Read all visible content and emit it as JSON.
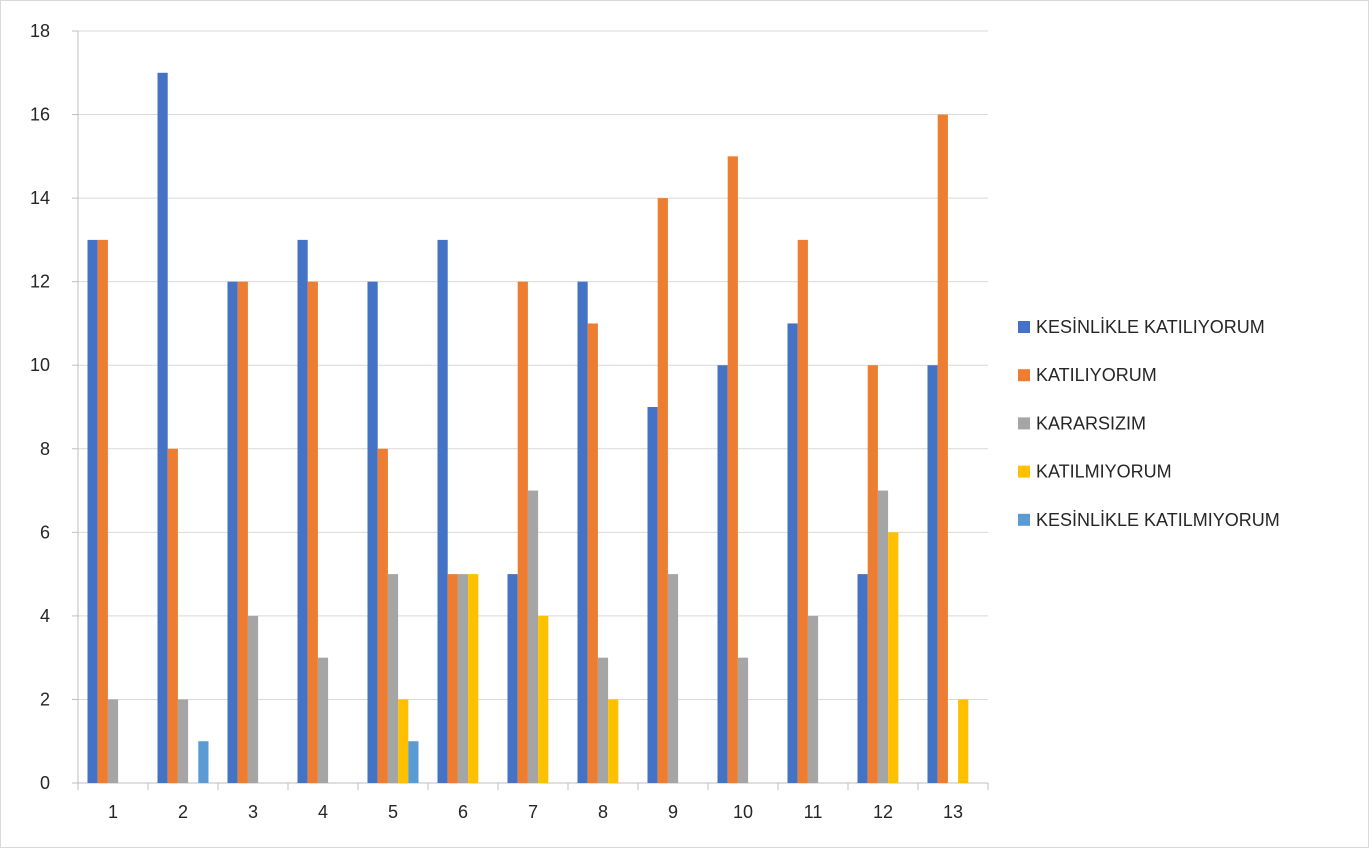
{
  "chart_data": {
    "type": "bar",
    "title": "",
    "xlabel": "",
    "ylabel": "",
    "ylim": [
      0,
      18
    ],
    "yticks": [
      0,
      2,
      4,
      6,
      8,
      10,
      12,
      14,
      16,
      18
    ],
    "grid": true,
    "legend_position": "right",
    "categories": [
      "1",
      "2",
      "3",
      "4",
      "5",
      "6",
      "7",
      "8",
      "9",
      "10",
      "11",
      "12",
      "13"
    ],
    "series": [
      {
        "name": "KESİNLİKLE KATILIYORUM",
        "color": "#4472C4",
        "values": [
          13,
          17,
          12,
          13,
          12,
          13,
          5,
          12,
          9,
          10,
          11,
          5,
          10
        ]
      },
      {
        "name": "KATILIYORUM",
        "color": "#ED7D31",
        "values": [
          13,
          8,
          12,
          12,
          8,
          5,
          12,
          11,
          14,
          15,
          13,
          10,
          16
        ]
      },
      {
        "name": "KARARSIZIM",
        "color": "#A5A5A5",
        "values": [
          2,
          2,
          4,
          3,
          5,
          5,
          7,
          3,
          5,
          3,
          4,
          7,
          0
        ]
      },
      {
        "name": "KATILMIYORUM",
        "color": "#FFC000",
        "values": [
          0,
          0,
          0,
          0,
          2,
          5,
          4,
          2,
          0,
          0,
          0,
          6,
          2
        ]
      },
      {
        "name": "KESİNLİKLE KATILMIYORUM",
        "color": "#5B9BD5",
        "values": [
          0,
          1,
          0,
          0,
          1,
          0,
          0,
          0,
          0,
          0,
          0,
          0,
          0
        ]
      }
    ]
  }
}
